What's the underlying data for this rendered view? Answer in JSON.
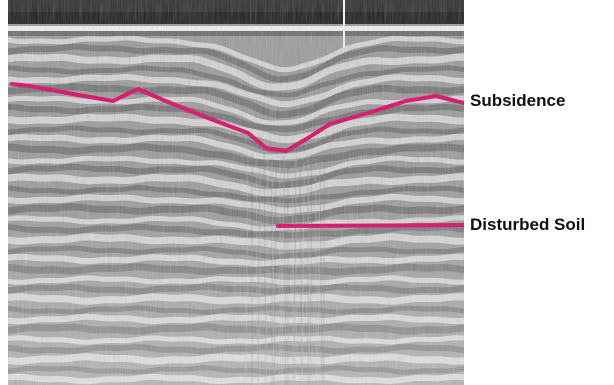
{
  "image": {
    "subject": "ground-penetrating radar scan",
    "palette": {
      "background": "#ffffff",
      "scan_base": "#9a9a9a",
      "band_light": "#e8e8e8",
      "band_dark": "#555555",
      "top_band": "#1c1c1c",
      "annotation_line": "#d61f6e",
      "label_text": "#111111"
    }
  },
  "labels": {
    "subsidence": "Subsidence",
    "disturbed_soil": "Disturbed Soil"
  }
}
